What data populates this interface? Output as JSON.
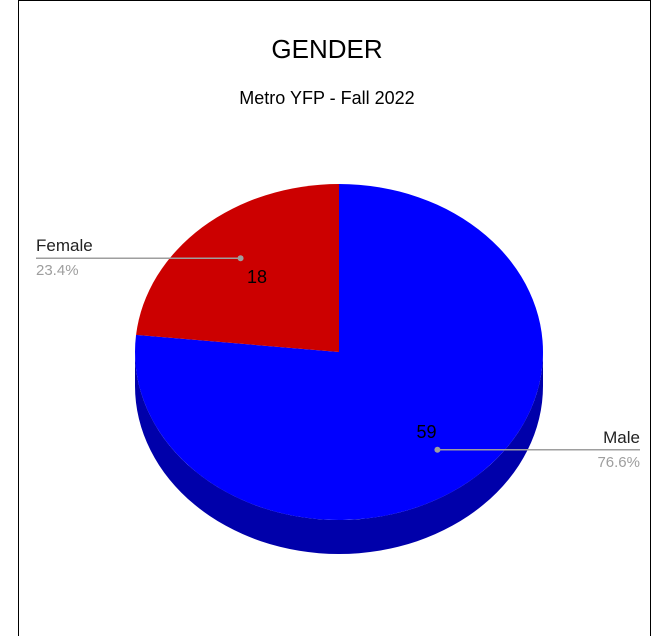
{
  "chart_data": {
    "type": "pie",
    "title": "GENDER",
    "subtitle": "Metro YFP - Fall 2022",
    "slices": [
      {
        "label": "Male",
        "value": 59,
        "percent": "76.6%",
        "color": "#0000ff",
        "side_color": "#0000aa"
      },
      {
        "label": "Female",
        "value": 18,
        "percent": "23.4%",
        "color": "#cc0000",
        "side_color": "#880000"
      }
    ],
    "legend": "callout-labels",
    "three_d": true
  }
}
